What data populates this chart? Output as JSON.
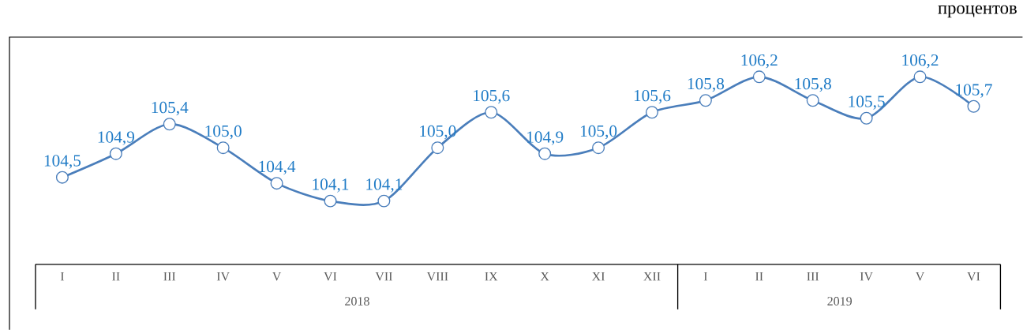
{
  "chart_data": {
    "type": "line",
    "categories": [
      "I",
      "II",
      "III",
      "IV",
      "V",
      "VI",
      "VII",
      "VIII",
      "IX",
      "X",
      "XI",
      "XII",
      "I",
      "II",
      "III",
      "IV",
      "V",
      "VI"
    ],
    "series": [
      {
        "color": "#4a7ebb",
        "values": [
          104.5,
          104.9,
          105.4,
          105.0,
          104.4,
          104.1,
          104.1,
          105.0,
          105.6,
          104.9,
          105.0,
          105.6,
          105.8,
          106.2,
          105.8,
          105.5,
          106.2,
          105.7
        ],
        "value_labels": [
          "104,5",
          "104,9",
          "105,4",
          "105,0",
          "104,4",
          "104,1",
          "104,1",
          "105,0",
          "105,6",
          "104,9",
          "105,0",
          "105,6",
          "105,8",
          "106,2",
          "105,8",
          "105,5",
          "106,2",
          "105,7"
        ]
      }
    ],
    "marker": "circle",
    "line_style": "solid",
    "tick_labels": "x",
    "annotations": [
      "процентов",
      "2018",
      "2019"
    ]
  }
}
